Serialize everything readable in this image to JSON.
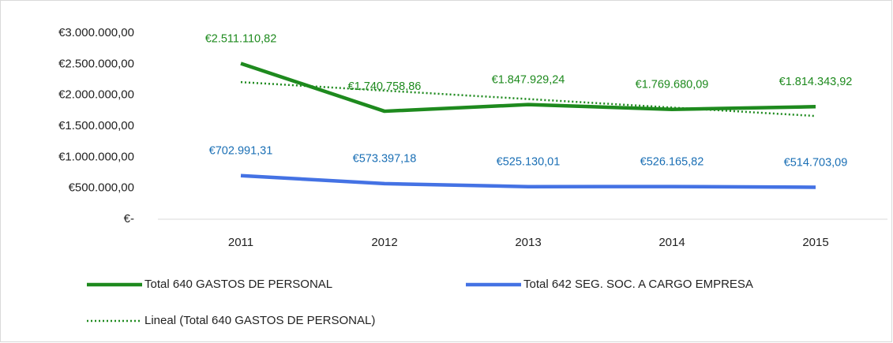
{
  "chart_data": {
    "type": "line",
    "categories": [
      "2011",
      "2012",
      "2013",
      "2014",
      "2015"
    ],
    "series": [
      {
        "name": "Total 640 GASTOS DE PERSONAL",
        "color": "#1e8a1e",
        "values": [
          2511110.82,
          1740758.86,
          1847929.24,
          1769680.09,
          1814343.92
        ],
        "value_labels": [
          "€2.511.110,82",
          "€1.740.758,86",
          "€1.847.929,24",
          "€1.769.680,09",
          "€1.814.343,92"
        ]
      },
      {
        "name": "Total 642 SEG. SOC. A CARGO EMPRESA",
        "color": "#4472e4",
        "values": [
          702991.31,
          573397.18,
          525130.01,
          526165.82,
          514703.09
        ],
        "value_labels": [
          "€702.991,31",
          "€573.397,18",
          "€525.130,01",
          "€526.165,82",
          "€514.703,09"
        ],
        "label_color": "#1a6fb5"
      },
      {
        "name": "Lineal (Total 640 GASTOS DE PERSONAL)",
        "color": "#1e8a1e",
        "style": "dotted",
        "values": [
          2210000,
          2073000,
          1937000,
          1800000,
          1664000
        ]
      }
    ],
    "ylim": [
      0,
      3000000
    ],
    "yticks": [
      {
        "value": 0,
        "label": "€-"
      },
      {
        "value": 500000,
        "label": "€500.000,00"
      },
      {
        "value": 1000000,
        "label": "€1.000.000,00"
      },
      {
        "value": 1500000,
        "label": "€1.500.000,00"
      },
      {
        "value": 2000000,
        "label": "€2.000.000,00"
      },
      {
        "value": 2500000,
        "label": "€2.500.000,00"
      },
      {
        "value": 3000000,
        "label": "€3.000.000,00"
      }
    ],
    "grid": false,
    "legend": "bottom"
  }
}
